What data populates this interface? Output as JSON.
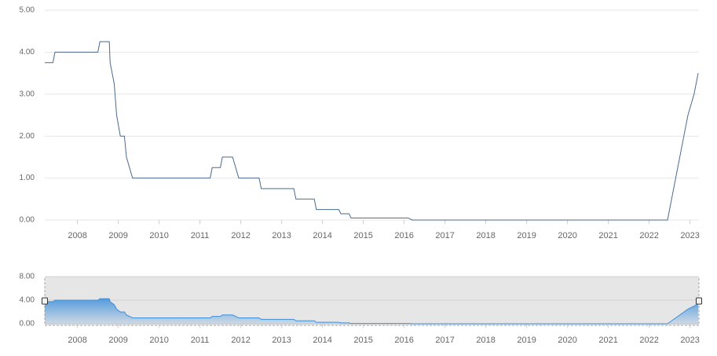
{
  "chart_data": {
    "type": "line",
    "x": [
      2007.2,
      2007.4,
      2007.45,
      2008.5,
      2008.55,
      2008.78,
      2008.8,
      2008.9,
      2008.96,
      2009.05,
      2009.15,
      2009.2,
      2009.35,
      2011.25,
      2011.3,
      2011.5,
      2011.55,
      2011.8,
      2011.95,
      2012.45,
      2012.5,
      2013.3,
      2013.35,
      2013.8,
      2013.85,
      2014.4,
      2014.45,
      2014.65,
      2014.7,
      2016.1,
      2016.2,
      2022.45,
      2022.55,
      2022.7,
      2022.85,
      2022.95,
      2023.1,
      2023.2
    ],
    "series": [
      {
        "color": "#4a6a8c",
        "values": [
          3.75,
          3.75,
          4.0,
          4.0,
          4.25,
          4.25,
          3.75,
          3.25,
          2.5,
          2.0,
          2.0,
          1.5,
          1.0,
          1.0,
          1.25,
          1.25,
          1.5,
          1.5,
          1.0,
          1.0,
          0.75,
          0.75,
          0.5,
          0.5,
          0.25,
          0.25,
          0.15,
          0.15,
          0.05,
          0.05,
          0.0,
          0.0,
          0.5,
          1.25,
          2.0,
          2.5,
          3.0,
          3.5
        ]
      }
    ],
    "xlim": [
      2007.2,
      2023.2
    ],
    "xticks": [
      2008,
      2009,
      2010,
      2011,
      2012,
      2013,
      2014,
      2015,
      2016,
      2017,
      2018,
      2019,
      2020,
      2021,
      2022,
      2023
    ],
    "ylim": [
      0,
      5
    ],
    "yticks": [
      {
        "value": 0,
        "label": "0.00"
      },
      {
        "value": 1,
        "label": "1.00"
      },
      {
        "value": 2,
        "label": "2.00"
      },
      {
        "value": 3,
        "label": "3.00"
      },
      {
        "value": 4,
        "label": "4.00"
      },
      {
        "value": 5,
        "label": "5.00"
      }
    ],
    "grid": true,
    "navigator": {
      "color": "#3d8fdb",
      "ylim": [
        0,
        8
      ],
      "yticks": [
        {
          "value": 0,
          "label": "0.00"
        },
        {
          "value": 4,
          "label": "4.00"
        },
        {
          "value": 8,
          "label": "8.00"
        }
      ]
    }
  }
}
